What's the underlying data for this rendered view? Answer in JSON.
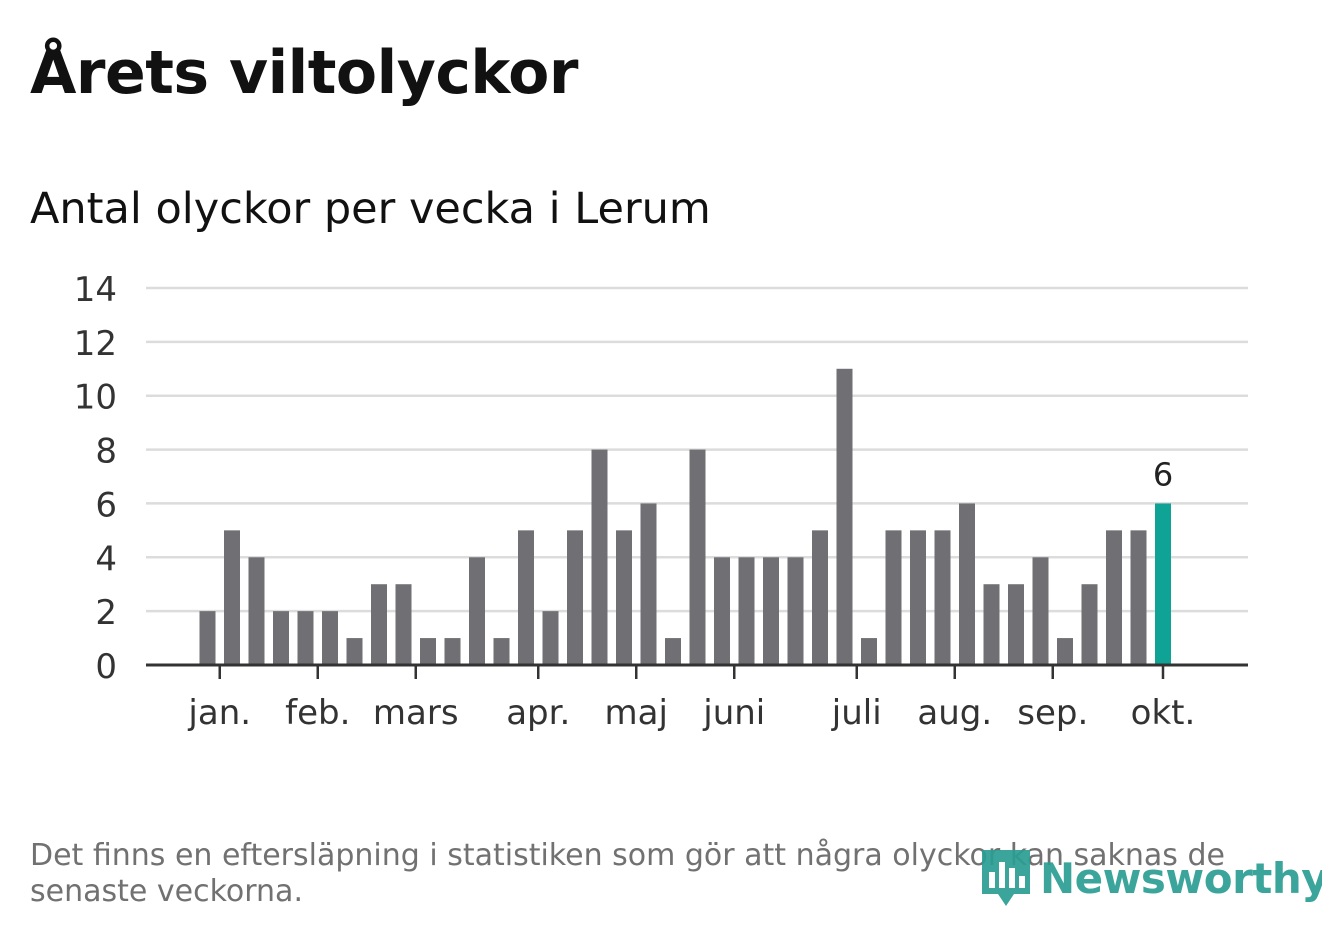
{
  "header": {
    "title": "Årets viltolyckor",
    "subtitle": "Antal olyckor per vecka i Lerum"
  },
  "footnote": "Det finns en eftersläpning i statistiken som gör att några olyckor kan saknas de senaste veckorna.",
  "brand": {
    "name": "Newsworthy",
    "icon": "newsworthy-logo-icon"
  },
  "colors": {
    "bar": "#6f6f74",
    "highlight": "#0fa396",
    "grid": "#dcdcdc",
    "axis": "#333333",
    "brand": "#2b9e94"
  },
  "chart_data": {
    "type": "bar",
    "title": "Antal olyckor per vecka i Lerum",
    "xlabel": "",
    "ylabel": "",
    "ylim": [
      0,
      14
    ],
    "yticks": [
      0,
      2,
      4,
      6,
      8,
      10,
      12,
      14
    ],
    "grid": true,
    "weeks": [
      2,
      3,
      4,
      5,
      6,
      7,
      8,
      9,
      10,
      11,
      12,
      13,
      14,
      15,
      16,
      17,
      18,
      19,
      20,
      21,
      22,
      23,
      24,
      25,
      26,
      27,
      28,
      29,
      30,
      31,
      32,
      33,
      34,
      35,
      36,
      37,
      38,
      39,
      40,
      41
    ],
    "values": [
      2,
      5,
      4,
      2,
      2,
      2,
      1,
      3,
      3,
      1,
      1,
      4,
      1,
      5,
      2,
      5,
      8,
      5,
      6,
      1,
      8,
      4,
      4,
      4,
      4,
      5,
      11,
      1,
      5,
      5,
      5,
      6,
      3,
      3,
      4,
      1,
      3,
      5,
      5,
      6
    ],
    "month_labels": [
      {
        "label": "jan.",
        "week": 2.5
      },
      {
        "label": "feb.",
        "week": 6.5
      },
      {
        "label": "mars",
        "week": 10.5
      },
      {
        "label": "apr.",
        "week": 15.5
      },
      {
        "label": "maj",
        "week": 19.5
      },
      {
        "label": "juni",
        "week": 23.5
      },
      {
        "label": "juli",
        "week": 28.5
      },
      {
        "label": "aug.",
        "week": 32.5
      },
      {
        "label": "sep.",
        "week": 36.5
      },
      {
        "label": "okt.",
        "week": 41
      }
    ],
    "highlight_index": 39,
    "highlight_label": "6"
  }
}
